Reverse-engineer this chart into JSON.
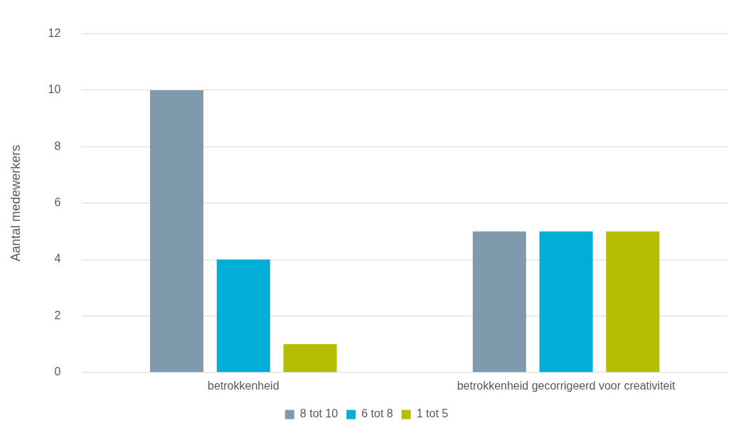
{
  "chart_data": {
    "type": "bar",
    "ylabel": "Aantal medewerkers",
    "categories": [
      "betrokkenheid",
      "betrokkenheid gecorrigeerd voor creativiteit"
    ],
    "series": [
      {
        "name": "8 tot 10",
        "color": "#7f9aad",
        "values": [
          10,
          5
        ]
      },
      {
        "name": "6 tot 8",
        "color": "#00aed8",
        "values": [
          4,
          5
        ]
      },
      {
        "name": "1 tot 5",
        "color": "#b5bd00",
        "values": [
          1,
          5
        ]
      }
    ],
    "ylim": [
      0,
      12
    ],
    "yticks": [
      0,
      2,
      4,
      6,
      8,
      10,
      12
    ],
    "grid": "y",
    "legend": "bottom"
  }
}
